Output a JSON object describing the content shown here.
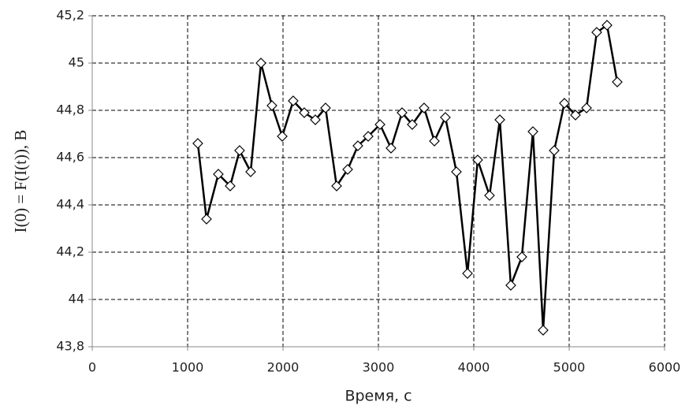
{
  "chart_data": {
    "type": "line",
    "x_label": "Время, с",
    "y_label": "I(0) = F(I(t)), В",
    "x": [
      1107,
      1198,
      1322,
      1446,
      1545,
      1661,
      1769,
      1884,
      1992,
      2107,
      2223,
      2339,
      2446,
      2562,
      2678,
      2785,
      2893,
      3017,
      3132,
      3248,
      3355,
      3479,
      3587,
      3702,
      3818,
      3934,
      4041,
      4165,
      4273,
      4388,
      4504,
      4620,
      4727,
      4843,
      4950,
      5066,
      5182,
      5289,
      5397,
      5504
    ],
    "series": [
      {
        "color": "#000000",
        "values": [
          44.66,
          44.34,
          44.53,
          44.48,
          44.63,
          44.54,
          45.0,
          44.82,
          44.69,
          44.84,
          44.79,
          44.76,
          44.81,
          44.48,
          44.55,
          44.65,
          44.69,
          44.74,
          44.64,
          44.79,
          44.74,
          44.81,
          44.67,
          44.77,
          44.54,
          44.11,
          44.59,
          44.44,
          44.76,
          44.06,
          44.18,
          44.71,
          43.87,
          44.63,
          44.83,
          44.78,
          44.81,
          45.13,
          45.16,
          44.92
        ]
      }
    ],
    "xlim": [
      0,
      6000
    ],
    "xticks": [
      0,
      1000,
      2000,
      3000,
      4000,
      5000,
      6000
    ],
    "ylim": [
      43.8,
      45.2
    ],
    "yticks": [
      {
        "value": 43.8,
        "label": "43,8"
      },
      44,
      {
        "value": 44.2,
        "label": "44,2"
      },
      {
        "value": 44.4,
        "label": "44,4"
      },
      {
        "value": 44.6,
        "label": "44,6"
      },
      {
        "value": 44.8,
        "label": "44,8"
      },
      45,
      {
        "value": 45.2,
        "label": "45,2"
      }
    ],
    "grid": true
  }
}
